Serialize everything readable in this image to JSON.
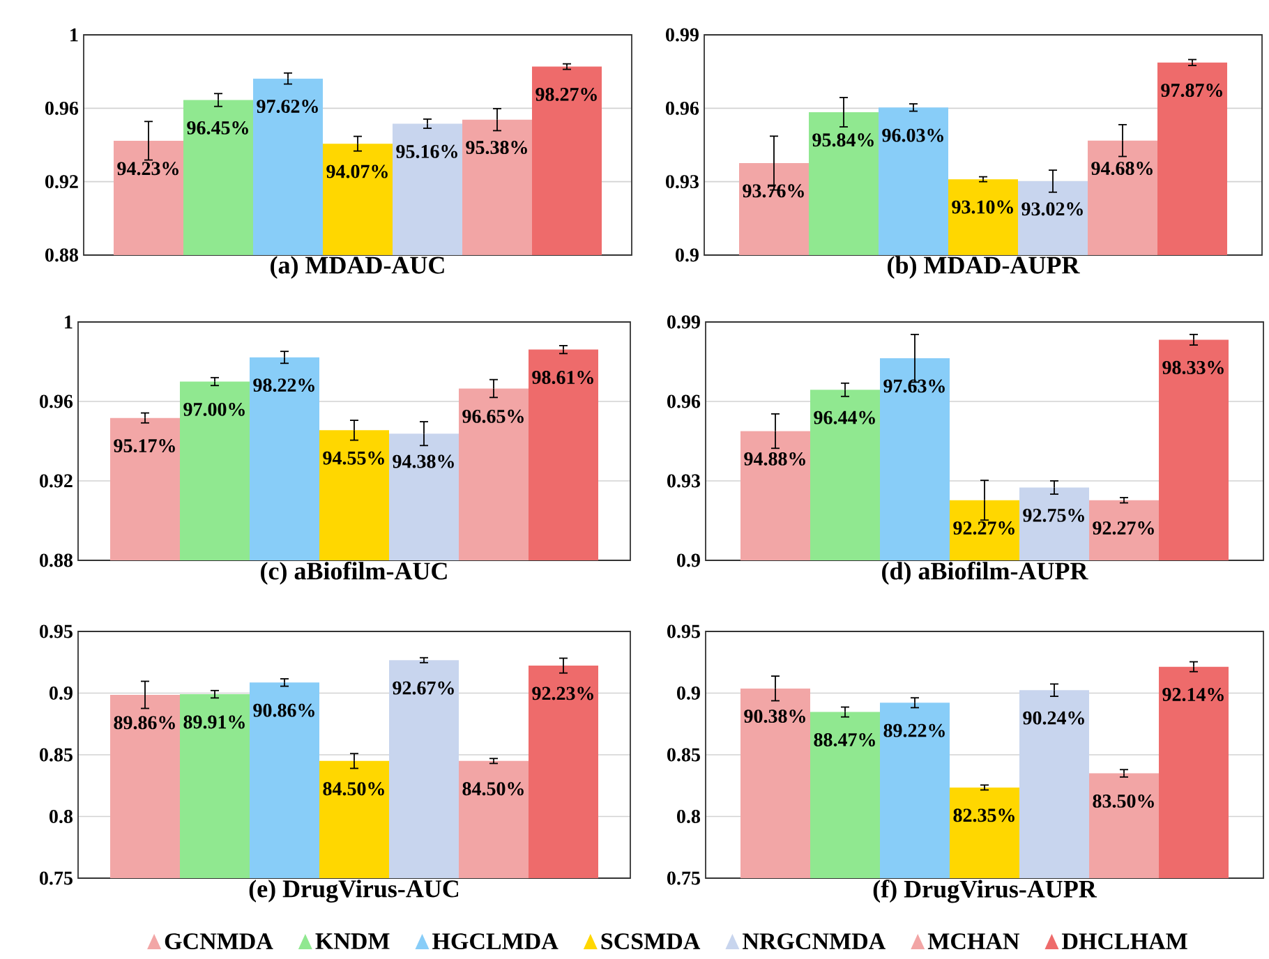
{
  "chart_data": [
    {
      "type": "bar",
      "title": "(a) MDAD-AUC",
      "categories": [
        null
      ],
      "ylim": [
        0.88,
        1
      ],
      "yticks": [
        0.88,
        0.92,
        0.96,
        1
      ],
      "grid": "y",
      "tick_labels": "y",
      "series": [
        {
          "color": "#f2a6a6",
          "values": [
            0.9423
          ],
          "errors": [
            0.0105
          ],
          "value_labels": [
            "94.23%"
          ]
        },
        {
          "color": "#90e890",
          "values": [
            0.9645
          ],
          "errors": [
            0.0035
          ],
          "value_labels": [
            "96.45%"
          ]
        },
        {
          "color": "#88cdf8",
          "values": [
            0.9762
          ],
          "errors": [
            0.003
          ],
          "value_labels": [
            "97.62%"
          ]
        },
        {
          "color": "#ffd700",
          "values": [
            0.9407
          ],
          "errors": [
            0.004
          ],
          "value_labels": [
            "94.07%"
          ]
        },
        {
          "color": "#c8d5ee",
          "values": [
            0.9516
          ],
          "errors": [
            0.0025
          ],
          "value_labels": [
            "95.16%"
          ]
        },
        {
          "color": "#f2a5a5",
          "values": [
            0.9538
          ],
          "errors": [
            0.006
          ],
          "value_labels": [
            "95.38%"
          ]
        },
        {
          "color": "#ee6b6b",
          "values": [
            0.9827
          ],
          "errors": [
            0.0015
          ],
          "value_labels": [
            "98.27%"
          ]
        }
      ]
    },
    {
      "type": "bar",
      "title": "(b) MDAD-AUPR",
      "categories": [
        null
      ],
      "ylim": [
        0.9,
        0.99
      ],
      "yticks": [
        0.9,
        0.93,
        0.96,
        0.99
      ],
      "grid": "y",
      "tick_labels": "y",
      "series": [
        {
          "color": "#f2a6a6",
          "values": [
            0.9376
          ],
          "errors": [
            0.011
          ],
          "value_labels": [
            "93.76%"
          ]
        },
        {
          "color": "#90e890",
          "values": [
            0.9584
          ],
          "errors": [
            0.006
          ],
          "value_labels": [
            "95.84%"
          ]
        },
        {
          "color": "#88cdf8",
          "values": [
            0.9603
          ],
          "errors": [
            0.0015
          ],
          "value_labels": [
            "96.03%"
          ]
        },
        {
          "color": "#ffd700",
          "values": [
            0.931
          ],
          "errors": [
            0.001
          ],
          "value_labels": [
            "93.10%"
          ]
        },
        {
          "color": "#c8d5ee",
          "values": [
            0.9302
          ],
          "errors": [
            0.0045
          ],
          "value_labels": [
            "93.02%"
          ]
        },
        {
          "color": "#f2a5a5",
          "values": [
            0.9468
          ],
          "errors": [
            0.0065
          ],
          "value_labels": [
            "94.68%"
          ]
        },
        {
          "color": "#ee6b6b",
          "values": [
            0.9787
          ],
          "errors": [
            0.0012
          ],
          "value_labels": [
            "97.87%"
          ]
        }
      ]
    },
    {
      "type": "bar",
      "title": "(c) aBiofilm-AUC",
      "categories": [
        null
      ],
      "ylim": [
        0.88,
        1
      ],
      "yticks": [
        0.88,
        0.92,
        0.96,
        1
      ],
      "grid": "y",
      "tick_labels": "y",
      "series": [
        {
          "color": "#f2a6a6",
          "values": [
            0.9517
          ],
          "errors": [
            0.0025
          ],
          "value_labels": [
            "95.17%"
          ]
        },
        {
          "color": "#90e890",
          "values": [
            0.97
          ],
          "errors": [
            0.002
          ],
          "value_labels": [
            "97.00%"
          ]
        },
        {
          "color": "#88cdf8",
          "values": [
            0.9822
          ],
          "errors": [
            0.003
          ],
          "value_labels": [
            "98.22%"
          ]
        },
        {
          "color": "#ffd700",
          "values": [
            0.9455
          ],
          "errors": [
            0.005
          ],
          "value_labels": [
            "94.55%"
          ]
        },
        {
          "color": "#c8d5ee",
          "values": [
            0.9438
          ],
          "errors": [
            0.006
          ],
          "value_labels": [
            "94.38%"
          ]
        },
        {
          "color": "#f2a5a5",
          "values": [
            0.9665
          ],
          "errors": [
            0.0045
          ],
          "value_labels": [
            "96.65%"
          ]
        },
        {
          "color": "#ee6b6b",
          "values": [
            0.9861
          ],
          "errors": [
            0.002
          ],
          "value_labels": [
            "98.61%"
          ]
        }
      ]
    },
    {
      "type": "bar",
      "title": "(d) aBiofilm-AUPR",
      "categories": [
        null
      ],
      "ylim": [
        0.9,
        0.99
      ],
      "yticks": [
        0.9,
        0.93,
        0.96,
        0.99
      ],
      "grid": "y",
      "tick_labels": "y",
      "series": [
        {
          "color": "#f2a6a6",
          "values": [
            0.9488
          ],
          "errors": [
            0.0065
          ],
          "value_labels": [
            "94.88%"
          ]
        },
        {
          "color": "#90e890",
          "values": [
            0.9644
          ],
          "errors": [
            0.0025
          ],
          "value_labels": [
            "96.44%"
          ]
        },
        {
          "color": "#88cdf8",
          "values": [
            0.9763
          ],
          "errors": [
            0.009
          ],
          "value_labels": [
            "97.63%"
          ]
        },
        {
          "color": "#ffd700",
          "values": [
            0.9227
          ],
          "errors": [
            0.0075
          ],
          "value_labels": [
            "92.27%"
          ]
        },
        {
          "color": "#c8d5ee",
          "values": [
            0.9275
          ],
          "errors": [
            0.0025
          ],
          "value_labels": [
            "92.75%"
          ]
        },
        {
          "color": "#f2a5a5",
          "values": [
            0.9227
          ],
          "errors": [
            0.001
          ],
          "value_labels": [
            "92.27%"
          ]
        },
        {
          "color": "#ee6b6b",
          "values": [
            0.9833
          ],
          "errors": [
            0.002
          ],
          "value_labels": [
            "98.33%"
          ]
        }
      ]
    },
    {
      "type": "bar",
      "title": "(e) DrugVirus-AUC",
      "categories": [
        null
      ],
      "ylim": [
        0.75,
        0.95
      ],
      "yticks": [
        0.75,
        0.8,
        0.85,
        0.9,
        0.95
      ],
      "grid": "y",
      "tick_labels": "y",
      "legend": "bottom",
      "series": [
        {
          "name": "GCNMDA",
          "color": "#f2a6a6",
          "values": [
            0.8986
          ],
          "errors": [
            0.011
          ],
          "value_labels": [
            "89.86%"
          ]
        },
        {
          "name": "KNDM",
          "color": "#90e890",
          "values": [
            0.8991
          ],
          "errors": [
            0.003
          ],
          "value_labels": [
            "89.91%"
          ]
        },
        {
          "name": "HGCLMDA",
          "color": "#88cdf8",
          "values": [
            0.9086
          ],
          "errors": [
            0.003
          ],
          "value_labels": [
            "90.86%"
          ]
        },
        {
          "name": "SCSMDA",
          "color": "#ffd700",
          "values": [
            0.845
          ],
          "errors": [
            0.006
          ],
          "value_labels": [
            "84.50%"
          ]
        },
        {
          "name": "NRGCNMDA",
          "color": "#c8d5ee",
          "values": [
            0.9267
          ],
          "errors": [
            0.002
          ],
          "value_labels": [
            "92.67%"
          ]
        },
        {
          "name": "MCHAN",
          "color": "#f2a5a5",
          "values": [
            0.845
          ],
          "errors": [
            0.002
          ],
          "value_labels": [
            "84.50%"
          ]
        },
        {
          "name": "DHCLHAM",
          "color": "#ee6b6b",
          "values": [
            0.9223
          ],
          "errors": [
            0.006
          ],
          "value_labels": [
            "92.23%"
          ]
        }
      ]
    },
    {
      "type": "bar",
      "title": "(f) DrugVirus-AUPR",
      "categories": [
        null
      ],
      "ylim": [
        0.75,
        0.95
      ],
      "yticks": [
        0.75,
        0.8,
        0.85,
        0.9,
        0.95
      ],
      "grid": "y",
      "tick_labels": "y",
      "series": [
        {
          "color": "#f2a6a6",
          "values": [
            0.9038
          ],
          "errors": [
            0.01
          ],
          "value_labels": [
            "90.38%"
          ]
        },
        {
          "color": "#90e890",
          "values": [
            0.8847
          ],
          "errors": [
            0.004
          ],
          "value_labels": [
            "88.47%"
          ]
        },
        {
          "color": "#88cdf8",
          "values": [
            0.8922
          ],
          "errors": [
            0.004
          ],
          "value_labels": [
            "89.22%"
          ]
        },
        {
          "color": "#ffd700",
          "values": [
            0.8235
          ],
          "errors": [
            0.002
          ],
          "value_labels": [
            "82.35%"
          ]
        },
        {
          "color": "#c8d5ee",
          "values": [
            0.9024
          ],
          "errors": [
            0.005
          ],
          "value_labels": [
            "90.24%"
          ]
        },
        {
          "color": "#f2a5a5",
          "values": [
            0.835
          ],
          "errors": [
            0.003
          ],
          "value_labels": [
            "83.50%"
          ]
        },
        {
          "color": "#ee6b6b",
          "values": [
            0.9214
          ],
          "errors": [
            0.004
          ],
          "value_labels": [
            "92.14%"
          ]
        }
      ]
    }
  ]
}
